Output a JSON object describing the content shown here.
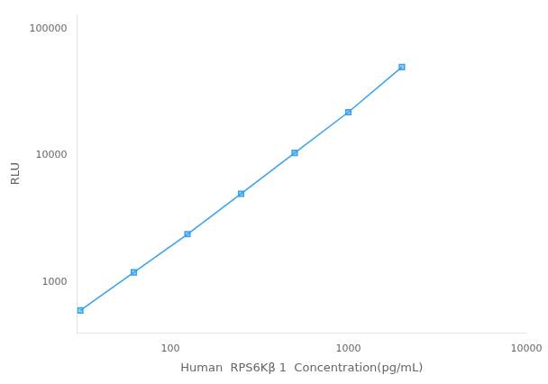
{
  "chart_data": {
    "type": "line",
    "x": [
      31.25,
      62.5,
      125,
      250,
      500,
      1000,
      2000
    ],
    "values": [
      600,
      1200,
      2400,
      5000,
      10500,
      22000,
      50000
    ],
    "xlabel": "Human  RPS6Kβ 1  Concentration(pg/mL)",
    "ylabel": "RLU",
    "log": true,
    "xlim": [
      30,
      10000
    ],
    "ylim": [
      400,
      130000
    ],
    "xticks": [
      100,
      1000,
      10000
    ],
    "yticks": [
      1000,
      10000,
      100000
    ],
    "marker": "square",
    "grid": false
  }
}
